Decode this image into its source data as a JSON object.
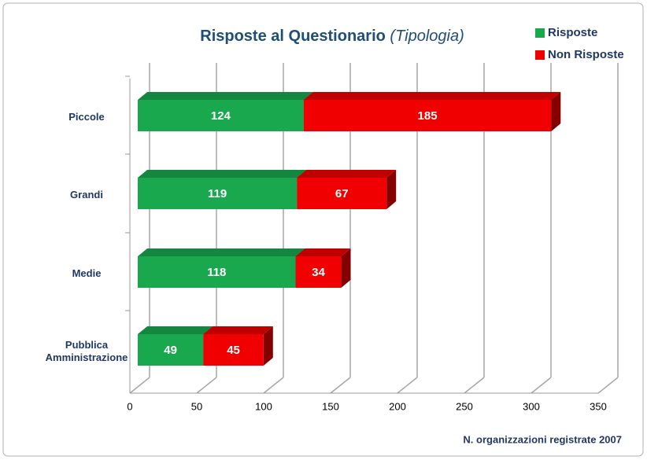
{
  "chart_data": {
    "type": "stacked_bar_horizontal",
    "title": "Risposte al Questionario",
    "subtitle": "(Tipologia)",
    "categories": [
      "Piccole",
      "Grandi",
      "Medie",
      "Pubblica Amministrazione"
    ],
    "series": [
      {
        "name": "Risposte",
        "color": "#1aa84f",
        "values": [
          124,
          119,
          118,
          49
        ]
      },
      {
        "name": "Non Risposte",
        "color": "#f00000",
        "values": [
          185,
          67,
          34,
          45
        ]
      }
    ],
    "xlim": [
      0,
      350
    ],
    "xticks": [
      0,
      50,
      100,
      150,
      200,
      250,
      300,
      350
    ],
    "xlabel": "N. organizzazioni registrate 2007",
    "grid": true,
    "legend": "top-right"
  }
}
